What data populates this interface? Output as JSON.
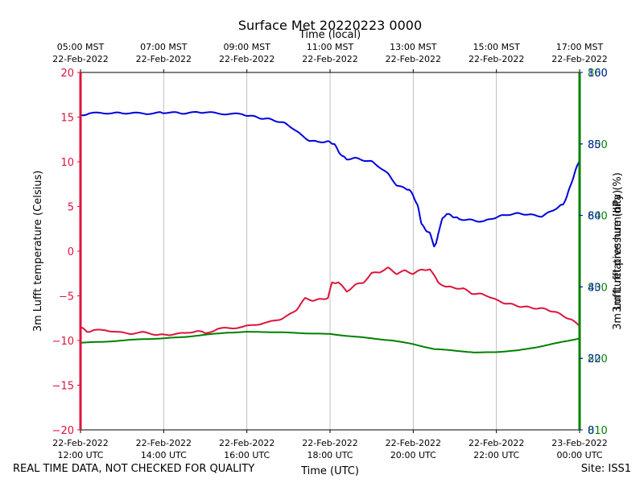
{
  "chart_data": {
    "type": "line",
    "title": "Surface Met 20220223 0000",
    "top_axis_label": "Time (local)",
    "bottom_axis_label": "Time (UTC)",
    "x_range_hours_utc": [
      12,
      24
    ],
    "bottom_ticks": [
      {
        "hour": 12,
        "line1": "22-Feb-2022",
        "line2": "12:00 UTC"
      },
      {
        "hour": 14,
        "line1": "22-Feb-2022",
        "line2": "14:00 UTC"
      },
      {
        "hour": 16,
        "line1": "22-Feb-2022",
        "line2": "16:00 UTC"
      },
      {
        "hour": 18,
        "line1": "22-Feb-2022",
        "line2": "18:00 UTC"
      },
      {
        "hour": 20,
        "line1": "22-Feb-2022",
        "line2": "20:00 UTC"
      },
      {
        "hour": 22,
        "line1": "22-Feb-2022",
        "line2": "22:00 UTC"
      },
      {
        "hour": 24,
        "line1": "23-Feb-2022",
        "line2": "00:00 UTC"
      }
    ],
    "top_ticks": [
      {
        "hour": 12,
        "line1": "05:00 MST",
        "line2": "22-Feb-2022"
      },
      {
        "hour": 14,
        "line1": "07:00 MST",
        "line2": "22-Feb-2022"
      },
      {
        "hour": 16,
        "line1": "09:00 MST",
        "line2": "22-Feb-2022"
      },
      {
        "hour": 18,
        "line1": "11:00 MST",
        "line2": "22-Feb-2022"
      },
      {
        "hour": 20,
        "line1": "13:00 MST",
        "line2": "22-Feb-2022"
      },
      {
        "hour": 22,
        "line1": "15:00 MST",
        "line2": "22-Feb-2022"
      },
      {
        "hour": 24,
        "line1": "17:00 MST",
        "line2": "22-Feb-2022"
      }
    ],
    "grid": "vertical",
    "axes": {
      "temperature": {
        "label": "3m Lufft temperature (Celsius)",
        "side": "left",
        "color": "#dc143c",
        "range": [
          -20,
          20
        ],
        "ticks": [
          -20,
          -15,
          -10,
          -5,
          0,
          5,
          10,
          15,
          20
        ],
        "tick_labels": [
          "−20",
          "−15",
          "−10",
          "−5",
          "0",
          "5",
          "10",
          "15",
          "20"
        ]
      },
      "humidity": {
        "label": "3m Lufft relative humidity (%)",
        "side": "right",
        "color": "#0000dd",
        "range": [
          0,
          100
        ],
        "ticks": [
          0,
          20,
          40,
          60,
          80,
          100
        ],
        "tick_labels": [
          "0",
          "20",
          "40",
          "60",
          "80",
          "100"
        ]
      },
      "pressure": {
        "label": "3m Lufft pressure (hPa)",
        "side": "right",
        "color": "#008000",
        "range": [
          810,
          860
        ],
        "ticks": [
          810,
          820,
          830,
          840,
          850,
          860
        ],
        "tick_labels": [
          "810",
          "820",
          "830",
          "840",
          "850",
          "860"
        ]
      }
    },
    "series": [
      {
        "name": "3m Lufft temperature (Celsius)",
        "axis": "temperature",
        "color": "#dc143c",
        "x": [
          12.0,
          12.15,
          12.3,
          12.6,
          12.9,
          13.2,
          13.5,
          13.8,
          14.0,
          14.2,
          14.5,
          14.8,
          15.0,
          15.3,
          15.6,
          15.9,
          16.2,
          16.5,
          16.8,
          17.0,
          17.2,
          17.4,
          17.6,
          17.8,
          17.95,
          18.05,
          18.2,
          18.4,
          18.6,
          18.8,
          19.0,
          19.2,
          19.4,
          19.6,
          19.8,
          20.0,
          20.2,
          20.4,
          20.6,
          20.8,
          21.0,
          21.2,
          21.4,
          21.6,
          21.8,
          22.0,
          22.2,
          22.4,
          22.6,
          22.8,
          23.0,
          23.2,
          23.4,
          23.6,
          23.8,
          24.0
        ],
        "y": [
          -8.5,
          -9.0,
          -8.9,
          -8.8,
          -9.1,
          -9.2,
          -9.1,
          -9.3,
          -9.4,
          -9.3,
          -9.2,
          -8.9,
          -9.2,
          -8.7,
          -8.6,
          -8.5,
          -8.2,
          -8.0,
          -7.6,
          -7.2,
          -6.5,
          -5.3,
          -5.5,
          -5.4,
          -5.2,
          -3.5,
          -3.5,
          -4.5,
          -3.8,
          -3.5,
          -2.5,
          -2.3,
          -1.9,
          -2.5,
          -2.2,
          -2.5,
          -2.1,
          -2.0,
          -3.5,
          -4.0,
          -4.1,
          -4.2,
          -4.7,
          -4.8,
          -5.0,
          -5.5,
          -5.8,
          -6.0,
          -6.2,
          -6.3,
          -6.4,
          -6.5,
          -6.8,
          -7.2,
          -7.7,
          -8.3
        ]
      },
      {
        "name": "3m Lufft relative humidity (%)",
        "axis": "humidity",
        "color": "#0000dd",
        "x": [
          12.0,
          12.2,
          12.5,
          12.8,
          13.0,
          13.3,
          13.6,
          13.9,
          14.0,
          14.3,
          14.5,
          14.8,
          15.0,
          15.3,
          15.6,
          15.9,
          16.1,
          16.3,
          16.5,
          16.7,
          16.9,
          17.1,
          17.3,
          17.5,
          17.7,
          17.9,
          18.0,
          18.1,
          18.2,
          18.3,
          18.4,
          18.6,
          18.8,
          19.0,
          19.2,
          19.4,
          19.6,
          19.8,
          19.9,
          20.0,
          20.1,
          20.15,
          20.2,
          20.3,
          20.4,
          20.5,
          20.55,
          20.6,
          20.7,
          20.8,
          20.9,
          21.0,
          21.1,
          21.3,
          21.5,
          21.7,
          21.9,
          22.1,
          22.3,
          22.5,
          22.7,
          22.9,
          23.1,
          23.3,
          23.5,
          23.6,
          23.7,
          23.8,
          23.9,
          24.0
        ],
        "y": [
          88.0,
          88.5,
          88.7,
          88.6,
          88.7,
          88.6,
          88.5,
          88.7,
          88.8,
          88.7,
          88.6,
          88.8,
          88.9,
          88.5,
          88.4,
          88.3,
          87.8,
          87.3,
          87.0,
          86.5,
          85.8,
          84.5,
          82.5,
          81.0,
          80.5,
          80.7,
          80.5,
          80.0,
          78.0,
          76.5,
          75.8,
          76.0,
          75.5,
          75.0,
          73.5,
          71.5,
          68.5,
          67.5,
          67.3,
          65.5,
          63.0,
          60.5,
          57.5,
          56.0,
          55.0,
          51.5,
          52.0,
          55.0,
          59.0,
          60.5,
          60.0,
          59.5,
          59.0,
          58.8,
          58.5,
          58.3,
          59.2,
          59.8,
          60.3,
          60.5,
          60.4,
          60.0,
          59.8,
          61.0,
          62.5,
          63.0,
          65.5,
          69.0,
          72.5,
          75.5
        ]
      },
      {
        "name": "3m Lufft pressure (hPa)",
        "axis": "pressure",
        "color": "#008000",
        "x": [
          12.0,
          12.5,
          13.0,
          13.5,
          14.0,
          14.5,
          15.0,
          15.5,
          16.0,
          16.5,
          17.0,
          17.5,
          18.0,
          18.5,
          19.0,
          19.5,
          20.0,
          20.5,
          21.0,
          21.5,
          22.0,
          22.5,
          23.0,
          23.5,
          24.0
        ],
        "y": [
          822.2,
          822.3,
          822.5,
          822.7,
          822.8,
          823.0,
          823.3,
          823.6,
          823.7,
          823.7,
          823.6,
          823.5,
          823.4,
          823.1,
          822.8,
          822.5,
          822.0,
          821.3,
          821.1,
          820.8,
          820.9,
          821.1,
          821.6,
          822.2,
          822.8
        ]
      }
    ]
  },
  "footer": {
    "left_note": "REAL TIME DATA, NOT CHECKED FOR QUALITY",
    "right_note": "Site: ISS1"
  }
}
